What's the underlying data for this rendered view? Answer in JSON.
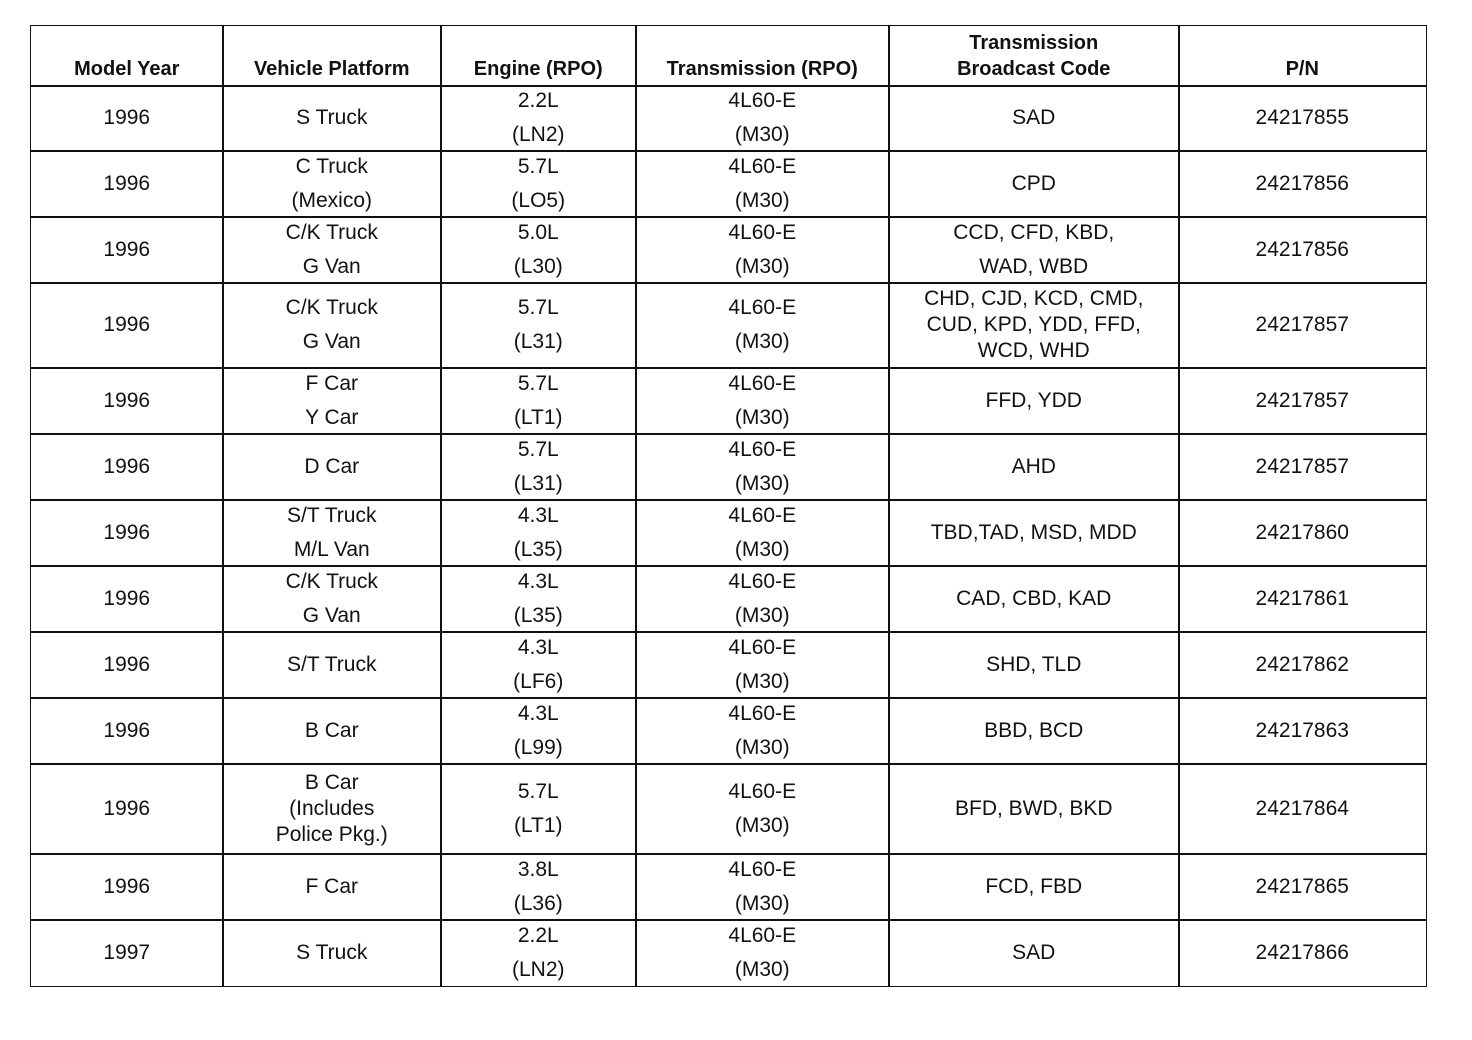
{
  "table": {
    "header": [
      [
        "Model Year"
      ],
      [
        "Vehicle Platform"
      ],
      [
        "Engine (RPO)"
      ],
      [
        "Transmission (RPO)"
      ],
      [
        "Transmission",
        "Broadcast Code"
      ],
      [
        "P/N"
      ]
    ],
    "rows": [
      [
        [
          "1996"
        ],
        [
          "S Truck"
        ],
        [
          "2.2L",
          "(LN2)"
        ],
        [
          "4L60-E",
          "(M30)"
        ],
        [
          "SAD"
        ],
        [
          "24217855"
        ]
      ],
      [
        [
          "1996"
        ],
        [
          "C Truck",
          "(Mexico)"
        ],
        [
          "5.7L",
          "(LO5)"
        ],
        [
          "4L60-E",
          "(M30)"
        ],
        [
          "CPD"
        ],
        [
          "24217856"
        ]
      ],
      [
        [
          "1996"
        ],
        [
          "C/K Truck",
          "G Van"
        ],
        [
          "5.0L",
          "(L30)"
        ],
        [
          "4L60-E",
          "(M30)"
        ],
        [
          "CCD, CFD, KBD,",
          "WAD, WBD"
        ],
        [
          "24217856"
        ]
      ],
      [
        [
          "1996"
        ],
        [
          "C/K Truck",
          "G Van"
        ],
        [
          "5.7L",
          "(L31)"
        ],
        [
          "4L60-E",
          "(M30)"
        ],
        [
          "CHD, CJD, KCD, CMD,",
          "CUD, KPD, YDD, FFD,",
          "WCD, WHD"
        ],
        [
          "24217857"
        ]
      ],
      [
        [
          "1996"
        ],
        [
          "F Car",
          "Y Car"
        ],
        [
          "5.7L",
          "(LT1)"
        ],
        [
          "4L60-E",
          "(M30)"
        ],
        [
          "FFD, YDD"
        ],
        [
          "24217857"
        ]
      ],
      [
        [
          "1996"
        ],
        [
          "D Car"
        ],
        [
          "5.7L",
          "(L31)"
        ],
        [
          "4L60-E",
          "(M30)"
        ],
        [
          "AHD"
        ],
        [
          "24217857"
        ]
      ],
      [
        [
          "1996"
        ],
        [
          "S/T Truck",
          "M/L Van"
        ],
        [
          "4.3L",
          "(L35)"
        ],
        [
          "4L60-E",
          "(M30)"
        ],
        [
          "TBD,TAD, MSD, MDD"
        ],
        [
          "24217860"
        ]
      ],
      [
        [
          "1996"
        ],
        [
          "C/K Truck",
          "G Van"
        ],
        [
          "4.3L",
          "(L35)"
        ],
        [
          "4L60-E",
          "(M30)"
        ],
        [
          "CAD, CBD, KAD"
        ],
        [
          "24217861"
        ]
      ],
      [
        [
          "1996"
        ],
        [
          "S/T Truck"
        ],
        [
          "4.3L",
          "(LF6)"
        ],
        [
          "4L60-E",
          "(M30)"
        ],
        [
          "SHD, TLD"
        ],
        [
          "24217862"
        ]
      ],
      [
        [
          "1996"
        ],
        [
          "B Car"
        ],
        [
          "4.3L",
          "(L99)"
        ],
        [
          "4L60-E",
          "(M30)"
        ],
        [
          "BBD, BCD"
        ],
        [
          "24217863"
        ]
      ],
      [
        [
          "1996"
        ],
        [
          "B Car",
          "(Includes",
          "Police Pkg.)"
        ],
        [
          "5.7L",
          "(LT1)"
        ],
        [
          "4L60-E",
          "(M30)"
        ],
        [
          "BFD, BWD, BKD"
        ],
        [
          "24217864"
        ]
      ],
      [
        [
          "1996"
        ],
        [
          "F Car"
        ],
        [
          "3.8L",
          "(L36)"
        ],
        [
          "4L60-E",
          "(M30)"
        ],
        [
          "FCD, FBD"
        ],
        [
          "24217865"
        ]
      ],
      [
        [
          "1997"
        ],
        [
          "S Truck"
        ],
        [
          "2.2L",
          "(LN2)"
        ],
        [
          "4L60-E",
          "(M30)"
        ],
        [
          "SAD"
        ],
        [
          "24217866"
        ]
      ]
    ]
  }
}
